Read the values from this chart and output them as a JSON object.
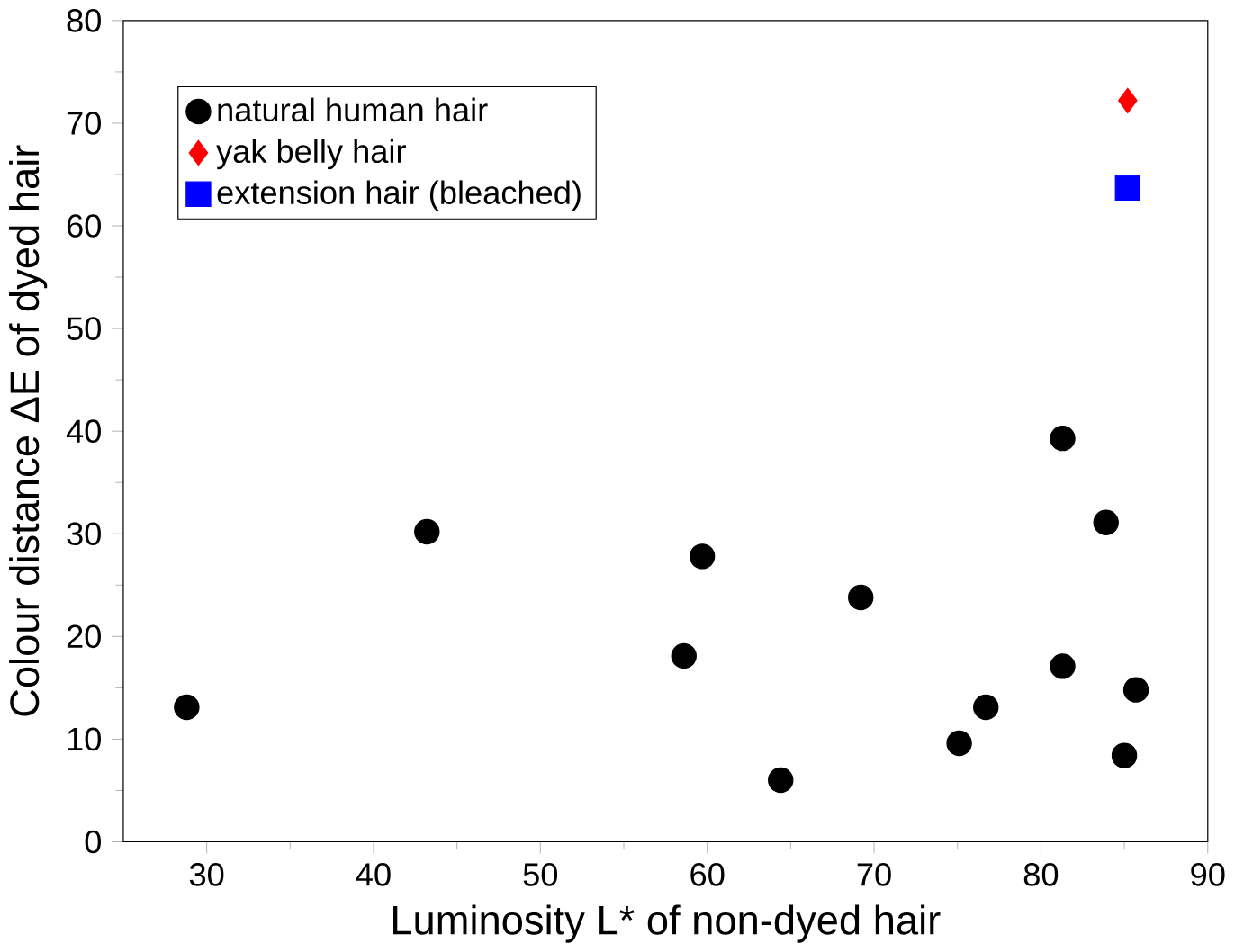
{
  "chart_data": {
    "type": "scatter",
    "xlabel": "Luminosity L* of non-dyed hair",
    "ylabel": "Colour distance ΔE of dyed hair",
    "xlim": [
      25,
      90
    ],
    "xticks": [
      30,
      40,
      50,
      60,
      70,
      80,
      90
    ],
    "ylim": [
      0,
      80
    ],
    "yticks": [
      0,
      10,
      20,
      30,
      40,
      50,
      60,
      70,
      80
    ],
    "legend": "top left",
    "grid": false,
    "series": [
      {
        "name": "natural human hair",
        "color": "#000000",
        "marker": "circle",
        "x": [
          28.8,
          43.2,
          58.6,
          59.7,
          64.4,
          69.2,
          75.1,
          76.7,
          81.3,
          81.3,
          83.9,
          85.0,
          85.7
        ],
        "values": [
          13.1,
          30.2,
          18.1,
          27.8,
          6.0,
          23.8,
          9.6,
          13.1,
          39.3,
          17.1,
          31.1,
          8.4,
          14.8
        ]
      },
      {
        "name": "yak belly hair",
        "color": "#ff0000",
        "marker": "diamond",
        "x": [
          85.2
        ],
        "values": [
          72.2
        ]
      },
      {
        "name": "extension hair (bleached)",
        "color": "#0000ff",
        "marker": "square",
        "x": [
          85.2
        ],
        "values": [
          63.7
        ]
      }
    ]
  }
}
